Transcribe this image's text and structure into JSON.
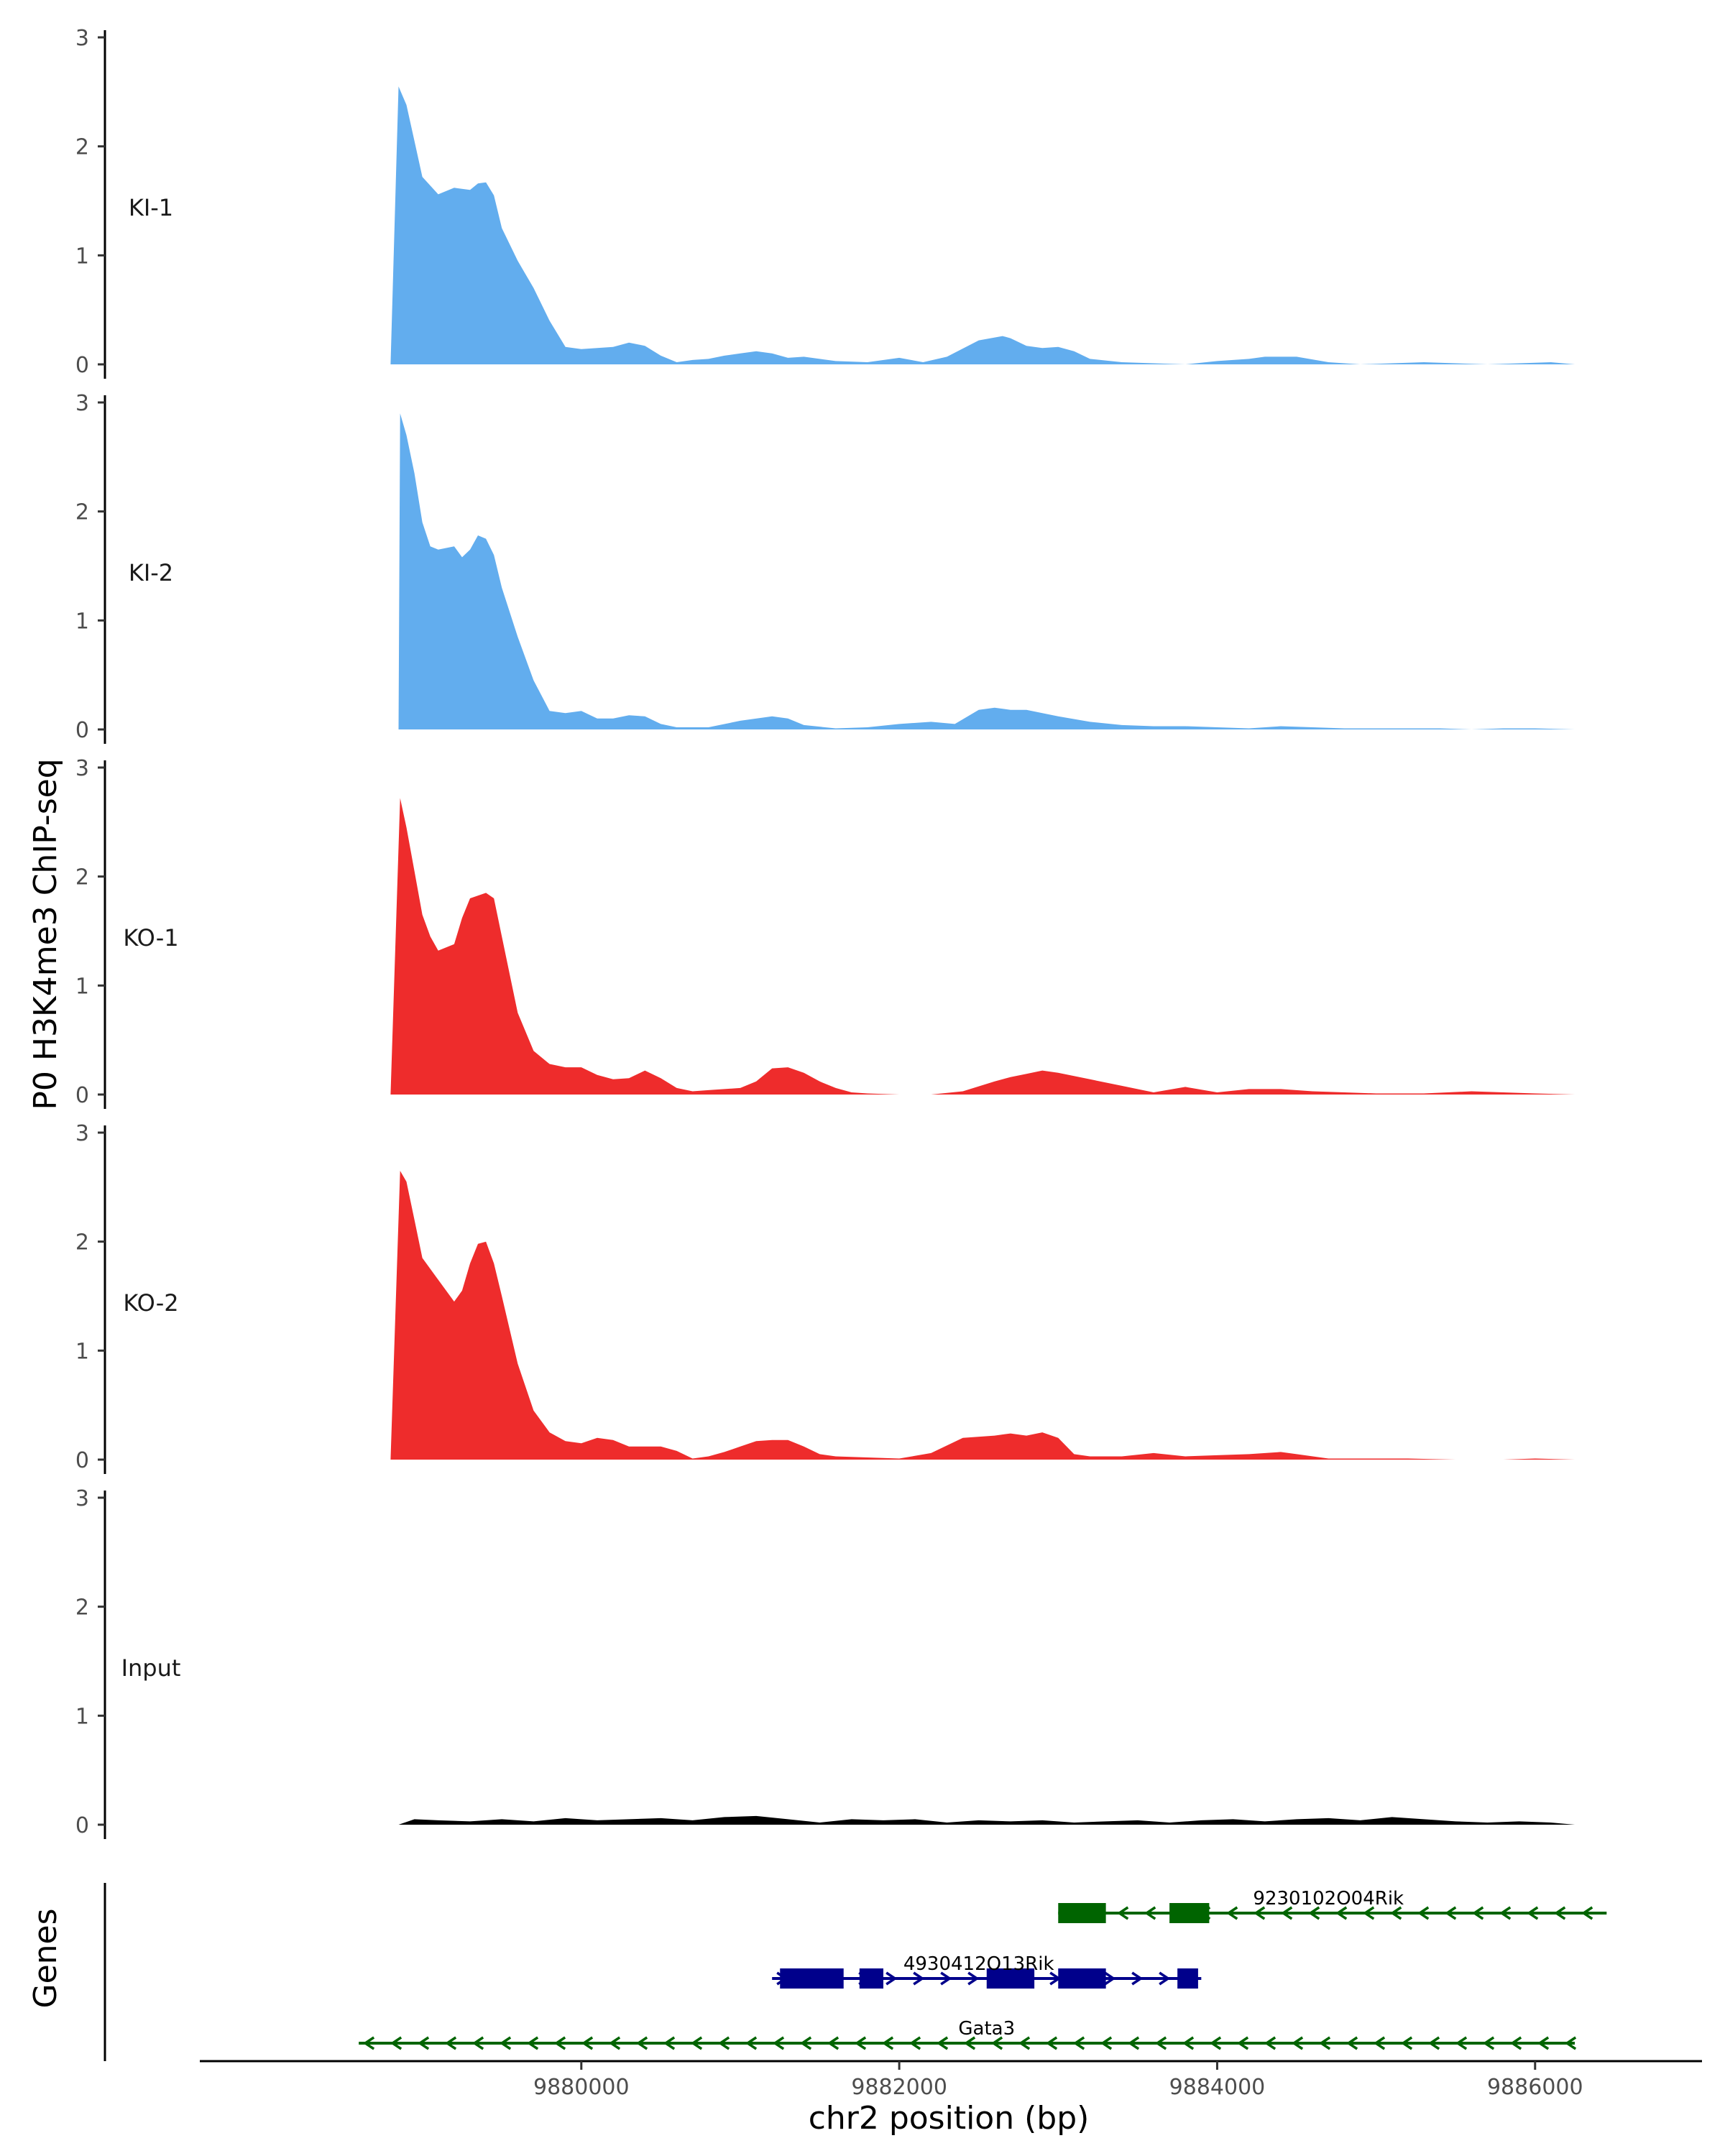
{
  "chart_data": {
    "type": "area",
    "ylabel": "P0 H3K4me3 ChIP-seq",
    "xlabel": "chr2 position (bp)",
    "genes_label": "Genes",
    "xlim": [
      9877600,
      9887050
    ],
    "ylim": [
      0,
      3
    ],
    "yticks": [
      0,
      1,
      2,
      3
    ],
    "xticks": [
      9880000,
      9882000,
      9884000,
      9886000
    ],
    "tracks": [
      {
        "name": "KI-1",
        "color": "#62ADEE",
        "x_start": 9878800,
        "x_end": 9886250,
        "x": [
          9878800,
          9878850,
          9878900,
          9878950,
          9879000,
          9879100,
          9879200,
          9879300,
          9879350,
          9879400,
          9879450,
          9879500,
          9879600,
          9879700,
          9879800,
          9879900,
          9880000,
          9880100,
          9880200,
          9880300,
          9880400,
          9880500,
          9880600,
          9880700,
          9880800,
          9880900,
          9881000,
          9881100,
          9881200,
          9881300,
          9881400,
          9881500,
          9881600,
          9881800,
          9882000,
          9882150,
          9882300,
          9882500,
          9882650,
          9882700,
          9882800,
          9882900,
          9883000,
          9883100,
          9883200,
          9883400,
          9883600,
          9883800,
          9884000,
          9884200,
          9884300,
          9884500,
          9884700,
          9884900,
          9885100,
          9885300,
          9885500,
          9885700,
          9885900,
          9886100,
          9886250
        ],
        "y": [
          0,
          2.55,
          2.38,
          2.05,
          1.72,
          1.56,
          1.62,
          1.6,
          1.66,
          1.67,
          1.55,
          1.25,
          0.95,
          0.7,
          0.4,
          0.16,
          0.14,
          0.15,
          0.16,
          0.2,
          0.17,
          0.08,
          0.02,
          0.04,
          0.05,
          0.08,
          0.1,
          0.12,
          0.1,
          0.06,
          0.07,
          0.05,
          0.03,
          0.02,
          0.06,
          0.02,
          0.07,
          0.22,
          0.26,
          0.24,
          0.17,
          0.15,
          0.16,
          0.12,
          0.05,
          0.02,
          0.01,
          0,
          0.03,
          0.05,
          0.07,
          0.07,
          0.02,
          0,
          0.01,
          0.02,
          0.01,
          0,
          0.01,
          0.02,
          0
        ]
      },
      {
        "name": "KI-2",
        "color": "#62ADEE",
        "x_start": 9878850,
        "x_end": 9886250,
        "x": [
          9878850,
          9878860,
          9878900,
          9878950,
          9879000,
          9879050,
          9879100,
          9879200,
          9879250,
          9879300,
          9879350,
          9879400,
          9879450,
          9879500,
          9879600,
          9879700,
          9879800,
          9879900,
          9880000,
          9880100,
          9880200,
          9880300,
          9880400,
          9880500,
          9880600,
          9880800,
          9881000,
          9881200,
          9881300,
          9881400,
          9881600,
          9881800,
          9882000,
          9882200,
          9882350,
          9882500,
          9882600,
          9882700,
          9882800,
          9883000,
          9883200,
          9883400,
          9883600,
          9883800,
          9884000,
          9884200,
          9884400,
          9884600,
          9884800,
          9885000,
          9885200,
          9885400,
          9885600,
          9885800,
          9886000,
          9886250
        ],
        "y": [
          0,
          2.9,
          2.7,
          2.35,
          1.9,
          1.68,
          1.65,
          1.68,
          1.58,
          1.65,
          1.78,
          1.75,
          1.6,
          1.3,
          0.85,
          0.45,
          0.17,
          0.15,
          0.17,
          0.1,
          0.1,
          0.13,
          0.12,
          0.05,
          0.02,
          0.02,
          0.08,
          0.12,
          0.1,
          0.04,
          0.01,
          0.02,
          0.05,
          0.07,
          0.05,
          0.18,
          0.2,
          0.18,
          0.18,
          0.12,
          0.07,
          0.04,
          0.03,
          0.03,
          0.02,
          0.01,
          0.03,
          0.02,
          0.01,
          0.01,
          0.01,
          0.01,
          0,
          0.01,
          0.01,
          0
        ]
      },
      {
        "name": "KO-1",
        "color": "#EE2C2C",
        "x_start": 9878800,
        "x_end": 9886250,
        "x": [
          9878800,
          9878860,
          9878900,
          9878950,
          9879000,
          9879050,
          9879100,
          9879200,
          9879250,
          9879300,
          9879400,
          9879450,
          9879500,
          9879600,
          9879700,
          9879800,
          9879900,
          9880000,
          9880100,
          9880200,
          9880300,
          9880400,
          9880500,
          9880600,
          9880700,
          9880800,
          9880900,
          9881000,
          9881100,
          9881200,
          9881300,
          9881400,
          9881500,
          9881600,
          9881700,
          9881800,
          9882000,
          9882200,
          9882400,
          9882600,
          9882700,
          9882800,
          9882900,
          9883000,
          9883200,
          9883400,
          9883600,
          9883800,
          9884000,
          9884200,
          9884400,
          9884600,
          9884800,
          9885000,
          9885300,
          9885600,
          9885800,
          9886000,
          9886250
        ],
        "y": [
          0,
          2.72,
          2.45,
          2.05,
          1.65,
          1.45,
          1.32,
          1.38,
          1.62,
          1.8,
          1.85,
          1.8,
          1.45,
          0.75,
          0.4,
          0.28,
          0.25,
          0.25,
          0.18,
          0.14,
          0.15,
          0.22,
          0.15,
          0.06,
          0.03,
          0.04,
          0.05,
          0.06,
          0.12,
          0.24,
          0.25,
          0.2,
          0.12,
          0.06,
          0.02,
          0.01,
          0,
          0,
          0.03,
          0.12,
          0.16,
          0.19,
          0.22,
          0.2,
          0.14,
          0.08,
          0.02,
          0.07,
          0.02,
          0.05,
          0.05,
          0.03,
          0.02,
          0.01,
          0.01,
          0.03,
          0.02,
          0.01,
          0
        ]
      },
      {
        "name": "KO-2",
        "color": "#EE2C2C",
        "x_start": 9878800,
        "x_end": 9886250,
        "x": [
          9878800,
          9878860,
          9878900,
          9878950,
          9879000,
          9879100,
          9879200,
          9879250,
          9879300,
          9879350,
          9879400,
          9879450,
          9879500,
          9879600,
          9879700,
          9879800,
          9879900,
          9880000,
          9880100,
          9880200,
          9880300,
          9880400,
          9880500,
          9880600,
          9880700,
          9880800,
          9880900,
          9881000,
          9881100,
          9881200,
          9881300,
          9881400,
          9881500,
          9881600,
          9881800,
          9882000,
          9882200,
          9882400,
          9882600,
          9882700,
          9882800,
          9882900,
          9883000,
          9883100,
          9883200,
          9883400,
          9883600,
          9883800,
          9884000,
          9884200,
          9884400,
          9884500,
          9884700,
          9885000,
          9885200,
          9885500,
          9885800,
          9886000,
          9886250
        ],
        "y": [
          0,
          2.65,
          2.55,
          2.2,
          1.85,
          1.65,
          1.45,
          1.55,
          1.8,
          1.98,
          2,
          1.8,
          1.5,
          0.88,
          0.45,
          0.25,
          0.17,
          0.15,
          0.2,
          0.18,
          0.12,
          0.12,
          0.12,
          0.08,
          0.01,
          0.03,
          0.07,
          0.12,
          0.17,
          0.18,
          0.18,
          0.12,
          0.05,
          0.03,
          0.02,
          0.01,
          0.06,
          0.2,
          0.22,
          0.24,
          0.22,
          0.25,
          0.2,
          0.05,
          0.03,
          0.03,
          0.06,
          0.03,
          0.04,
          0.05,
          0.07,
          0.05,
          0.01,
          0.01,
          0.01,
          0,
          0,
          0.01,
          0
        ]
      },
      {
        "name": "Input",
        "color": "#000000",
        "x_start": 9878850,
        "x_end": 9886250,
        "x": [
          9878850,
          9878950,
          9879100,
          9879300,
          9879500,
          9879700,
          9879900,
          9880100,
          9880300,
          9880500,
          9880700,
          9880900,
          9881100,
          9881300,
          9881500,
          9881700,
          9881900,
          9882100,
          9882300,
          9882500,
          9882700,
          9882900,
          9883100,
          9883300,
          9883500,
          9883700,
          9883900,
          9884100,
          9884300,
          9884500,
          9884700,
          9884900,
          9885100,
          9885300,
          9885500,
          9885700,
          9885900,
          9886100,
          9886250
        ],
        "y": [
          0,
          0.05,
          0.04,
          0.03,
          0.05,
          0.03,
          0.06,
          0.04,
          0.05,
          0.06,
          0.04,
          0.07,
          0.08,
          0.05,
          0.02,
          0.05,
          0.04,
          0.05,
          0.02,
          0.04,
          0.03,
          0.04,
          0.02,
          0.03,
          0.04,
          0.02,
          0.04,
          0.05,
          0.03,
          0.05,
          0.06,
          0.04,
          0.07,
          0.05,
          0.03,
          0.02,
          0.03,
          0.02,
          0
        ]
      }
    ],
    "genes": [
      {
        "name": "9230102O04Rik",
        "strand": "-",
        "color": "#006400",
        "start": 9883000,
        "end": 9886450,
        "exons": [
          [
            9883000,
            9883300
          ],
          [
            9883700,
            9883950
          ]
        ],
        "label_x": 9884700,
        "row": 1
      },
      {
        "name": "4930412O13Rik",
        "strand": "+",
        "color": "#00008B",
        "start": 9881200,
        "end": 9883900,
        "exons": [
          [
            9881250,
            9881650
          ],
          [
            9881750,
            9881900
          ],
          [
            9882550,
            9882850
          ],
          [
            9883000,
            9883300
          ],
          [
            9883750,
            9883880
          ]
        ],
        "label_x": 9882500,
        "row": 2
      },
      {
        "name": "Gata3",
        "strand": "-",
        "color": "#006400",
        "start": 9878600,
        "end": 9886250,
        "exons": [],
        "label_x": 9882550,
        "row": 3
      }
    ]
  }
}
